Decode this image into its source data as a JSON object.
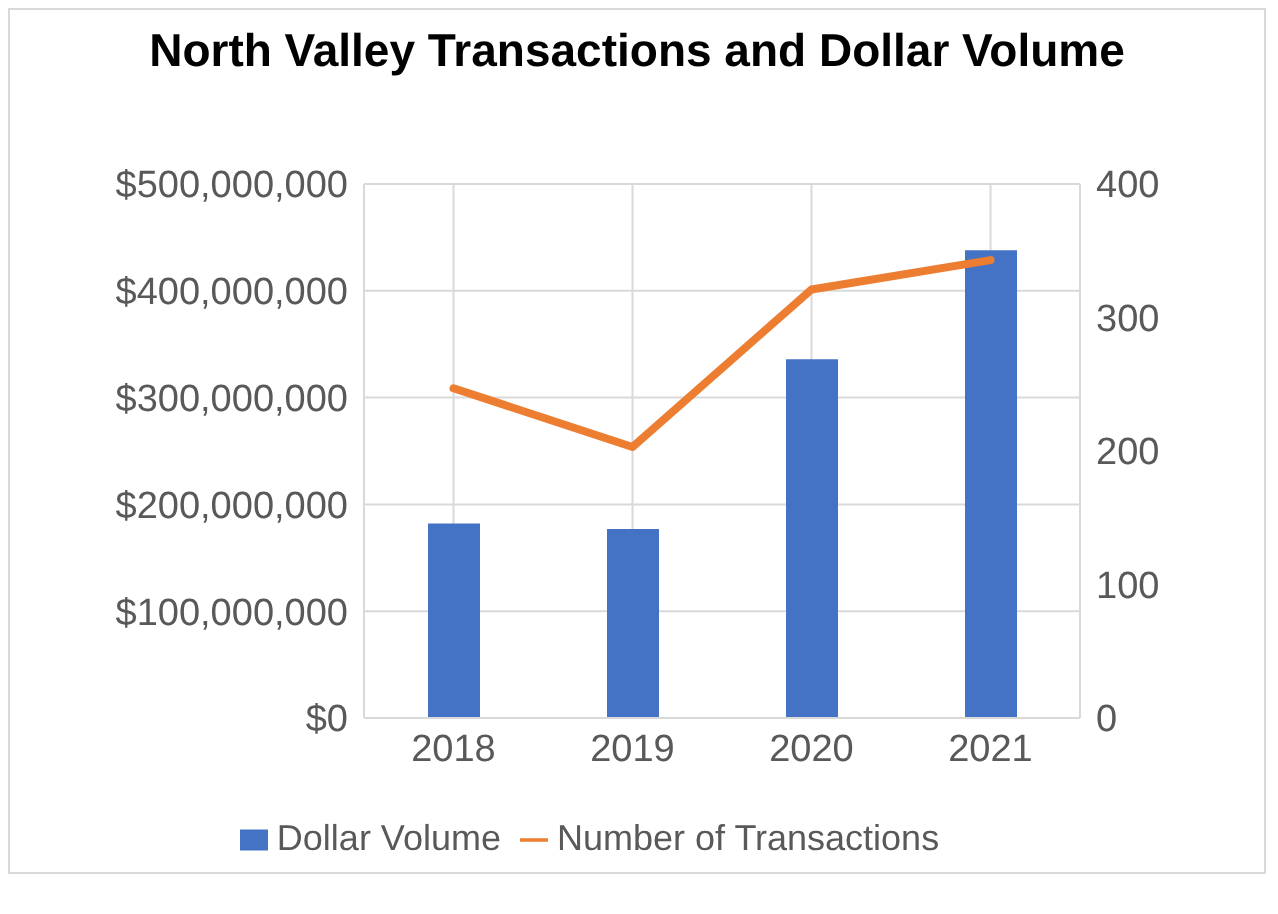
{
  "chart_data": {
    "type": "bar",
    "title": "North Valley Transactions and Dollar Volume",
    "categories": [
      "2018",
      "2019",
      "2020",
      "2021"
    ],
    "series": [
      {
        "name": "Dollar Volume",
        "color": "#4472c4",
        "values": [
          182000000,
          177000000,
          336000000,
          438000000
        ]
      },
      {
        "name": "Number of Transactions",
        "type": "line",
        "color": "#ed7d31",
        "axis": "y2",
        "values": [
          247,
          203,
          321,
          343
        ]
      }
    ],
    "ylim": [
      0,
      500000000
    ],
    "yticks": [
      {
        "value": 0,
        "label": "$0"
      },
      {
        "value": 100000000,
        "label": "$100,000,000"
      },
      {
        "value": 200000000,
        "label": "$200,000,000"
      },
      {
        "value": 300000000,
        "label": "$300,000,000"
      },
      {
        "value": 400000000,
        "label": "$400,000,000"
      },
      {
        "value": 500000000,
        "label": "$500,000,000"
      }
    ],
    "y2lim": [
      0,
      400
    ],
    "y2ticks": [
      0,
      100,
      200,
      300,
      400
    ],
    "grid": true,
    "legend": "bottom"
  }
}
